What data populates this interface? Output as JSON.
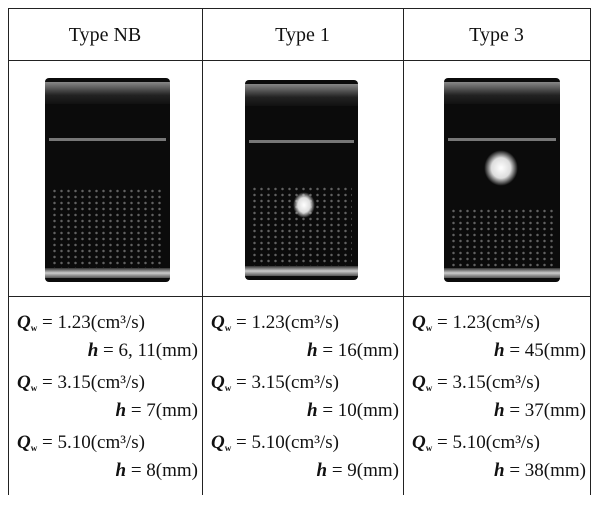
{
  "table": {
    "flow_symbol": "Q",
    "flow_subscript": "w",
    "height_symbol": "h",
    "columns": [
      {
        "header": "Type NB",
        "entries": [
          {
            "flow": "= 1.23(cm³/s)",
            "height": "= 6, 11(mm)"
          },
          {
            "flow": "= 3.15(cm³/s)",
            "height": "= 7(mm)"
          },
          {
            "flow": "= 5.10(cm³/s)",
            "height": "= 8(mm)"
          }
        ]
      },
      {
        "header": "Type 1",
        "entries": [
          {
            "flow": "= 1.23(cm³/s)",
            "height": "= 16(mm)"
          },
          {
            "flow": "= 3.15(cm³/s)",
            "height": "= 10(mm)"
          },
          {
            "flow": "= 5.10(cm³/s)",
            "height": "= 9(mm)"
          }
        ]
      },
      {
        "header": "Type 3",
        "entries": [
          {
            "flow": "= 1.23(cm³/s)",
            "height": "= 45(mm)"
          },
          {
            "flow": "= 3.15(cm³/s)",
            "height": "= 37(mm)"
          },
          {
            "flow": "= 5.10(cm³/s)",
            "height": "= 38(mm)"
          }
        ]
      }
    ]
  }
}
